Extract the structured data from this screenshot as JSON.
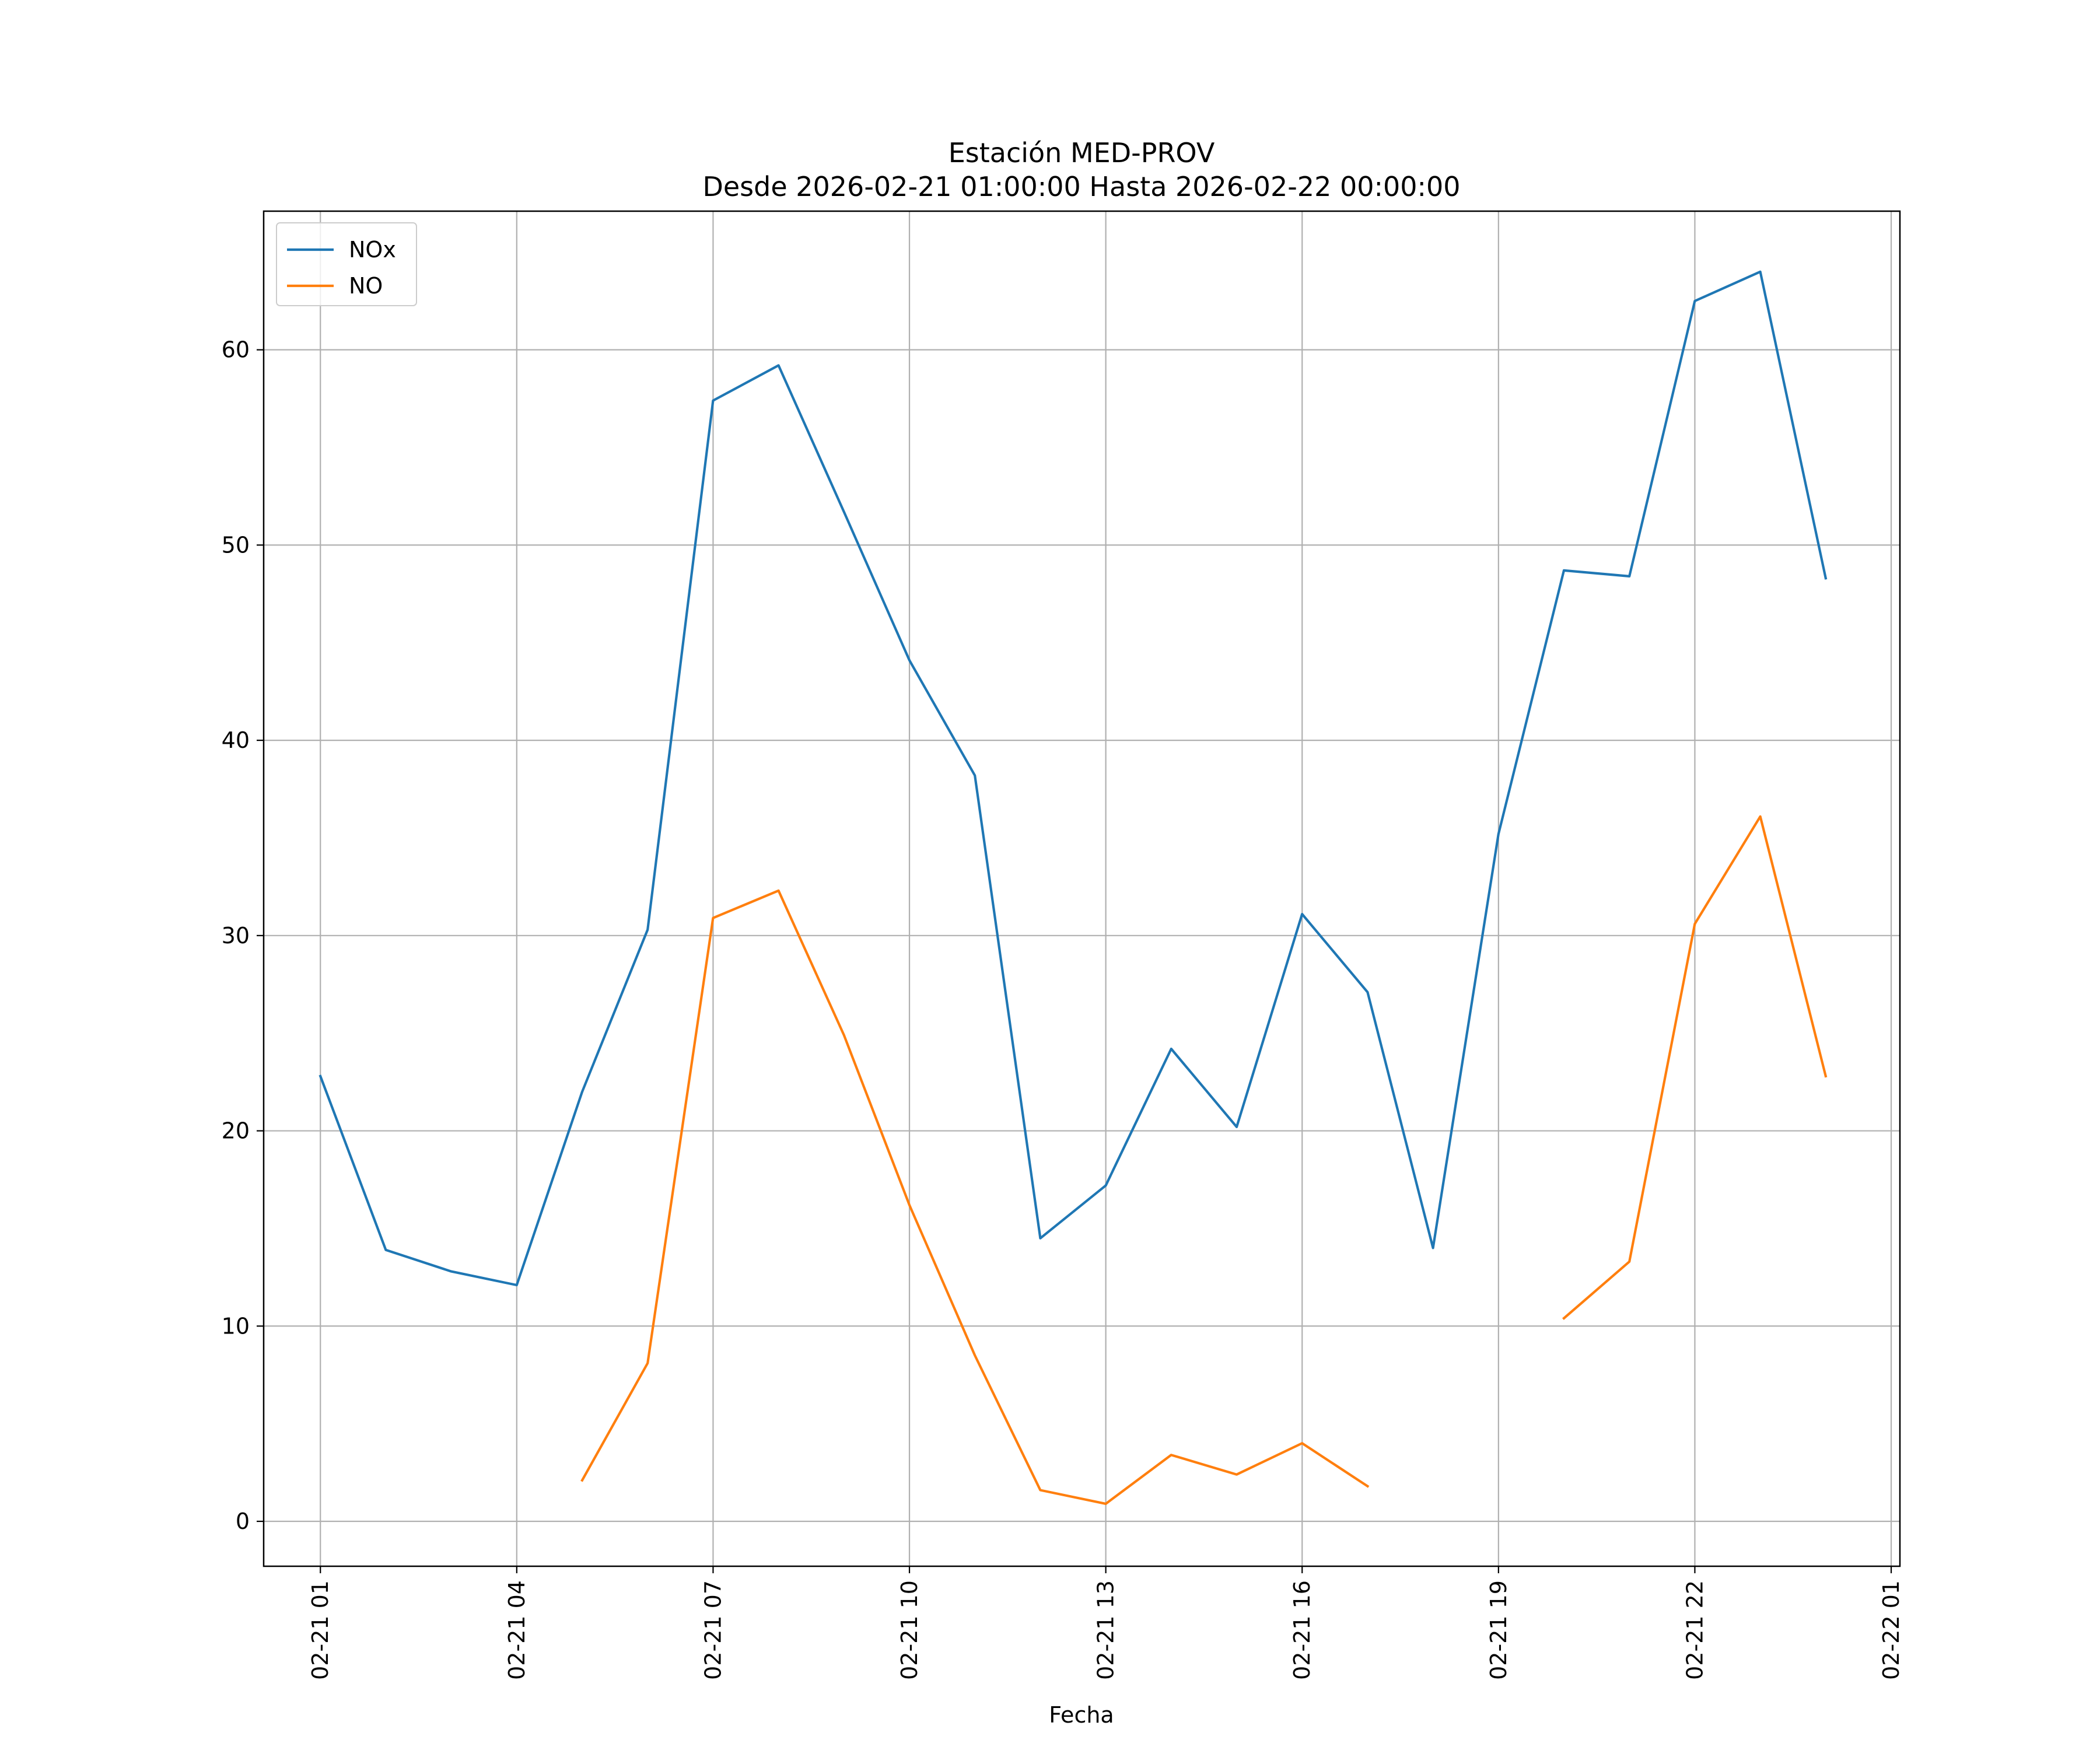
{
  "chart_data": {
    "type": "line",
    "title": "Estación MED-PROV",
    "subtitle": "Desde 2026-02-21 01:00:00 Hasta 2026-02-22 00:00:00",
    "xlabel": "Fecha",
    "ylabel": "",
    "x": [
      "2026-02-21 01:00",
      "2026-02-21 02:00",
      "2026-02-21 03:00",
      "2026-02-21 04:00",
      "2026-02-21 05:00",
      "2026-02-21 06:00",
      "2026-02-21 07:00",
      "2026-02-21 08:00",
      "2026-02-21 09:00",
      "2026-02-21 10:00",
      "2026-02-21 11:00",
      "2026-02-21 12:00",
      "2026-02-21 13:00",
      "2026-02-21 14:00",
      "2026-02-21 15:00",
      "2026-02-21 16:00",
      "2026-02-21 17:00",
      "2026-02-21 18:00",
      "2026-02-21 19:00",
      "2026-02-21 20:00",
      "2026-02-21 21:00",
      "2026-02-21 22:00",
      "2026-02-21 23:00",
      "2026-02-22 00:00"
    ],
    "series": [
      {
        "name": "NOx",
        "color": "#1f77b4",
        "values": [
          22.8,
          13.9,
          12.8,
          12.1,
          22.0,
          30.3,
          57.4,
          59.2,
          51.7,
          44.1,
          38.2,
          14.5,
          17.2,
          24.2,
          20.2,
          31.1,
          27.1,
          14.0,
          35.2,
          48.7,
          48.4,
          62.5,
          64.0,
          48.3
        ]
      },
      {
        "name": "NO",
        "color": "#ff7f0e",
        "values": [
          null,
          null,
          null,
          null,
          2.1,
          8.1,
          30.9,
          32.3,
          24.9,
          16.2,
          8.5,
          1.6,
          0.9,
          3.4,
          2.4,
          4.0,
          1.8,
          null,
          null,
          10.4,
          13.3,
          30.6,
          36.1,
          22.8
        ]
      }
    ],
    "xticks": [
      {
        "label": "02-21 01",
        "x": "2026-02-21 01:00"
      },
      {
        "label": "02-21 04",
        "x": "2026-02-21 04:00"
      },
      {
        "label": "02-21 07",
        "x": "2026-02-21 07:00"
      },
      {
        "label": "02-21 10",
        "x": "2026-02-21 10:00"
      },
      {
        "label": "02-21 13",
        "x": "2026-02-21 13:00"
      },
      {
        "label": "02-21 16",
        "x": "2026-02-21 16:00"
      },
      {
        "label": "02-21 19",
        "x": "2026-02-21 19:00"
      },
      {
        "label": "02-21 22",
        "x": "2026-02-21 22:00"
      },
      {
        "label": "02-22 01",
        "x": "2026-02-22 01:00"
      }
    ],
    "yticks": [
      0,
      10,
      20,
      30,
      40,
      50,
      60
    ],
    "ylim": [
      -2.3,
      67.1
    ],
    "xlim": [
      "2026-02-21 00:08",
      "2026-02-22 01:08"
    ],
    "grid": true,
    "legend": "top-left"
  }
}
